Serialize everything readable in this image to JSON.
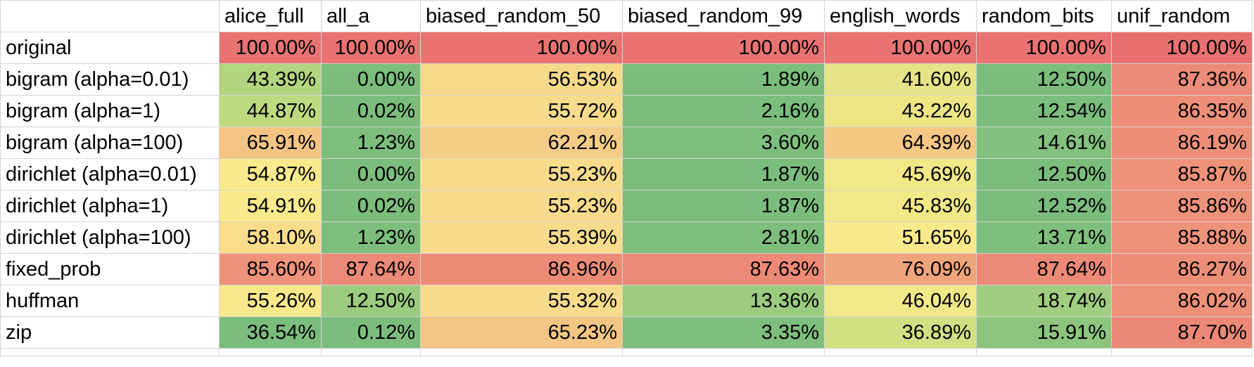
{
  "table": {
    "columns": [
      "alice_full",
      "all_a",
      "biased_random_50",
      "biased_random_99",
      "english_words",
      "random_bits",
      "unif_random"
    ],
    "rows": [
      {
        "label": "original",
        "values": [
          "100.00%",
          "100.00%",
          "100.00%",
          "100.00%",
          "100.00%",
          "100.00%",
          "100.00%"
        ],
        "colors": [
          "#e97371",
          "#e97371",
          "#e97371",
          "#e97371",
          "#e97371",
          "#e97371",
          "#e97070"
        ]
      },
      {
        "label": "bigram (alpha=0.01)",
        "values": [
          "43.39%",
          "0.00%",
          "56.53%",
          "1.89%",
          "41.60%",
          "12.50%",
          "87.36%"
        ],
        "colors": [
          "#b2d57f",
          "#7bbd7d",
          "#f7d98a",
          "#7bbd7d",
          "#e6e486",
          "#7bbd7d",
          "#ec8b77"
        ]
      },
      {
        "label": "bigram (alpha=1)",
        "values": [
          "44.87%",
          "0.02%",
          "55.72%",
          "2.16%",
          "43.22%",
          "12.54%",
          "86.35%"
        ],
        "colors": [
          "#bdda81",
          "#7bbd7d",
          "#f8dc8b",
          "#7bbd7d",
          "#eee685",
          "#7bbd7d",
          "#ed8f78"
        ]
      },
      {
        "label": "bigram (alpha=100)",
        "values": [
          "65.91%",
          "1.23%",
          "62.21%",
          "3.60%",
          "64.39%",
          "14.61%",
          "86.19%"
        ],
        "colors": [
          "#f4c482",
          "#7dbe7c",
          "#f5cc86",
          "#7ebe7c",
          "#f4c783",
          "#83c17e",
          "#ee9079"
        ]
      },
      {
        "label": "dirichlet (alpha=0.01)",
        "values": [
          "54.87%",
          "0.00%",
          "55.23%",
          "1.87%",
          "45.69%",
          "12.50%",
          "85.87%"
        ],
        "colors": [
          "#faea8c",
          "#7bbd7d",
          "#f8dc8b",
          "#7bbd7d",
          "#f1e888",
          "#7bbd7d",
          "#ee9279"
        ]
      },
      {
        "label": "dirichlet (alpha=1)",
        "values": [
          "54.91%",
          "0.02%",
          "55.23%",
          "1.87%",
          "45.83%",
          "12.52%",
          "85.86%"
        ],
        "colors": [
          "#faea8c",
          "#7bbd7d",
          "#f8dc8b",
          "#7bbd7d",
          "#f1e888",
          "#7bbd7d",
          "#ee9279"
        ]
      },
      {
        "label": "dirichlet (alpha=100)",
        "values": [
          "58.10%",
          "1.23%",
          "55.39%",
          "2.81%",
          "51.65%",
          "13.71%",
          "85.88%"
        ],
        "colors": [
          "#f9dd8a",
          "#7dbe7c",
          "#f8dc8b",
          "#7dbe7c",
          "#faea8c",
          "#7fbf7d",
          "#ee9279"
        ]
      },
      {
        "label": "fixed_prob",
        "values": [
          "85.60%",
          "87.64%",
          "86.96%",
          "87.63%",
          "76.09%",
          "87.64%",
          "86.27%"
        ],
        "colors": [
          "#ee9279",
          "#ec8a77",
          "#ec8c77",
          "#ec8a77",
          "#f0a47c",
          "#ec8a77",
          "#ed8f78"
        ]
      },
      {
        "label": "huffman",
        "values": [
          "55.26%",
          "12.50%",
          "55.32%",
          "13.36%",
          "46.04%",
          "18.74%",
          "86.02%"
        ],
        "colors": [
          "#fae98b",
          "#9acb7f",
          "#f8dc8b",
          "#9bcb7f",
          "#f1e888",
          "#a0cd80",
          "#ee9179"
        ]
      },
      {
        "label": "zip",
        "values": [
          "36.54%",
          "0.12%",
          "65.23%",
          "3.35%",
          "36.89%",
          "15.91%",
          "87.70%"
        ],
        "colors": [
          "#7bbd7d",
          "#7bbd7d",
          "#f4c683",
          "#7ebe7c",
          "#d3df83",
          "#8ec57e",
          "#eb8876"
        ]
      }
    ]
  }
}
